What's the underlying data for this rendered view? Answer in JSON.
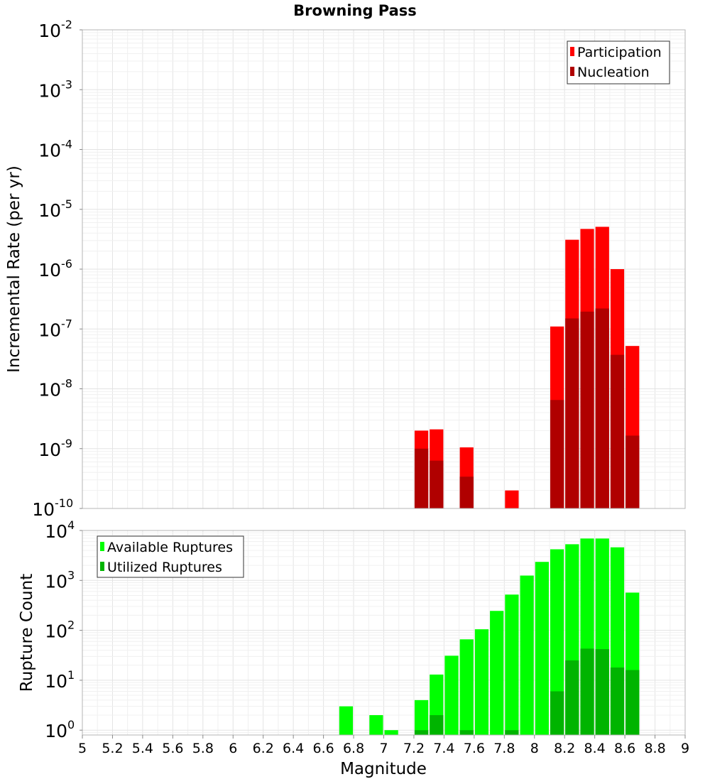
{
  "title": "Browning Pass",
  "colors": {
    "participation": "#ff0000",
    "nucleation": "#b00000",
    "available": "#00ff00",
    "utilized": "#00b400",
    "grid": "#e6e6e6",
    "frame": "#b4b4b4"
  },
  "chart_data": [
    {
      "type": "bar",
      "name": "rate-panel",
      "ylabel": "Incremental Rate (per yr)",
      "yscale": "log",
      "ylim": [
        1e-10,
        0.01
      ],
      "xlim": [
        5,
        9
      ],
      "legend_position": "top-right",
      "grid": true,
      "bin_width": 0.1,
      "y_ticks": [
        {
          "base": "10",
          "exp": "-10",
          "value": 1e-10
        },
        {
          "base": "10",
          "exp": "-9",
          "value": 1e-09
        },
        {
          "base": "10",
          "exp": "-8",
          "value": 1e-08
        },
        {
          "base": "10",
          "exp": "-7",
          "value": 1e-07
        },
        {
          "base": "10",
          "exp": "-6",
          "value": 1e-06
        },
        {
          "base": "10",
          "exp": "-5",
          "value": 1e-05
        },
        {
          "base": "10",
          "exp": "-4",
          "value": 0.0001
        },
        {
          "base": "10",
          "exp": "-3",
          "value": 0.001
        },
        {
          "base": "10",
          "exp": "-2",
          "value": 0.01
        }
      ],
      "series": [
        {
          "name": "Participation",
          "color_key": "participation",
          "points": [
            {
              "x": 7.25,
              "y": 2e-09
            },
            {
              "x": 7.35,
              "y": 2.1e-09
            },
            {
              "x": 7.55,
              "y": 1.05e-09
            },
            {
              "x": 7.85,
              "y": 2e-10
            },
            {
              "x": 8.15,
              "y": 1.1e-07
            },
            {
              "x": 8.25,
              "y": 3.1e-06
            },
            {
              "x": 8.35,
              "y": 4.7e-06
            },
            {
              "x": 8.45,
              "y": 5.1e-06
            },
            {
              "x": 8.55,
              "y": 1e-06
            },
            {
              "x": 8.65,
              "y": 5.2e-08
            }
          ]
        },
        {
          "name": "Nucleation",
          "color_key": "nucleation",
          "points": [
            {
              "x": 7.25,
              "y": 1e-09
            },
            {
              "x": 7.35,
              "y": 6.3e-10
            },
            {
              "x": 7.55,
              "y": 3.4e-10
            },
            {
              "x": 8.15,
              "y": 6.5e-09
            },
            {
              "x": 8.25,
              "y": 1.5e-07
            },
            {
              "x": 8.35,
              "y": 1.95e-07
            },
            {
              "x": 8.45,
              "y": 2.2e-07
            },
            {
              "x": 8.55,
              "y": 3.7e-08
            },
            {
              "x": 8.65,
              "y": 1.65e-09
            }
          ]
        }
      ]
    },
    {
      "type": "bar",
      "name": "count-panel",
      "ylabel": "Rupture Count",
      "xlabel": "Magnitude",
      "yscale": "log",
      "ylim": [
        0.8,
        10000
      ],
      "xlim": [
        5,
        9
      ],
      "legend_position": "top-left",
      "grid": true,
      "bin_width": 0.1,
      "x_ticks": [
        "5",
        "5.2",
        "5.4",
        "5.6",
        "5.8",
        "6",
        "6.2",
        "6.4",
        "6.6",
        "6.8",
        "7",
        "7.2",
        "7.4",
        "7.6",
        "7.8",
        "8",
        "8.2",
        "8.4",
        "8.6",
        "8.8",
        "9"
      ],
      "y_ticks": [
        {
          "base": "10",
          "exp": "0",
          "value": 1
        },
        {
          "base": "10",
          "exp": "1",
          "value": 10
        },
        {
          "base": "10",
          "exp": "2",
          "value": 100
        },
        {
          "base": "10",
          "exp": "3",
          "value": 1000
        },
        {
          "base": "10",
          "exp": "4",
          "value": 10000
        }
      ],
      "series": [
        {
          "name": "Available Ruptures",
          "color_key": "available",
          "points": [
            {
              "x": 6.75,
              "y": 3
            },
            {
              "x": 6.95,
              "y": 2
            },
            {
              "x": 7.05,
              "y": 1
            },
            {
              "x": 7.25,
              "y": 4
            },
            {
              "x": 7.35,
              "y": 13
            },
            {
              "x": 7.45,
              "y": 31
            },
            {
              "x": 7.55,
              "y": 66
            },
            {
              "x": 7.65,
              "y": 105
            },
            {
              "x": 7.75,
              "y": 245
            },
            {
              "x": 7.85,
              "y": 520
            },
            {
              "x": 7.95,
              "y": 1250
            },
            {
              "x": 8.05,
              "y": 2350
            },
            {
              "x": 8.15,
              "y": 4200
            },
            {
              "x": 8.25,
              "y": 5300
            },
            {
              "x": 8.35,
              "y": 6900
            },
            {
              "x": 8.45,
              "y": 6900
            },
            {
              "x": 8.55,
              "y": 4600
            },
            {
              "x": 8.65,
              "y": 570
            }
          ]
        },
        {
          "name": "Utilized Ruptures",
          "color_key": "utilized",
          "points": [
            {
              "x": 7.25,
              "y": 1
            },
            {
              "x": 7.35,
              "y": 2
            },
            {
              "x": 7.55,
              "y": 1
            },
            {
              "x": 7.85,
              "y": 1
            },
            {
              "x": 8.15,
              "y": 6
            },
            {
              "x": 8.25,
              "y": 25
            },
            {
              "x": 8.35,
              "y": 43
            },
            {
              "x": 8.45,
              "y": 42
            },
            {
              "x": 8.55,
              "y": 18
            },
            {
              "x": 8.65,
              "y": 16
            }
          ]
        }
      ]
    }
  ]
}
